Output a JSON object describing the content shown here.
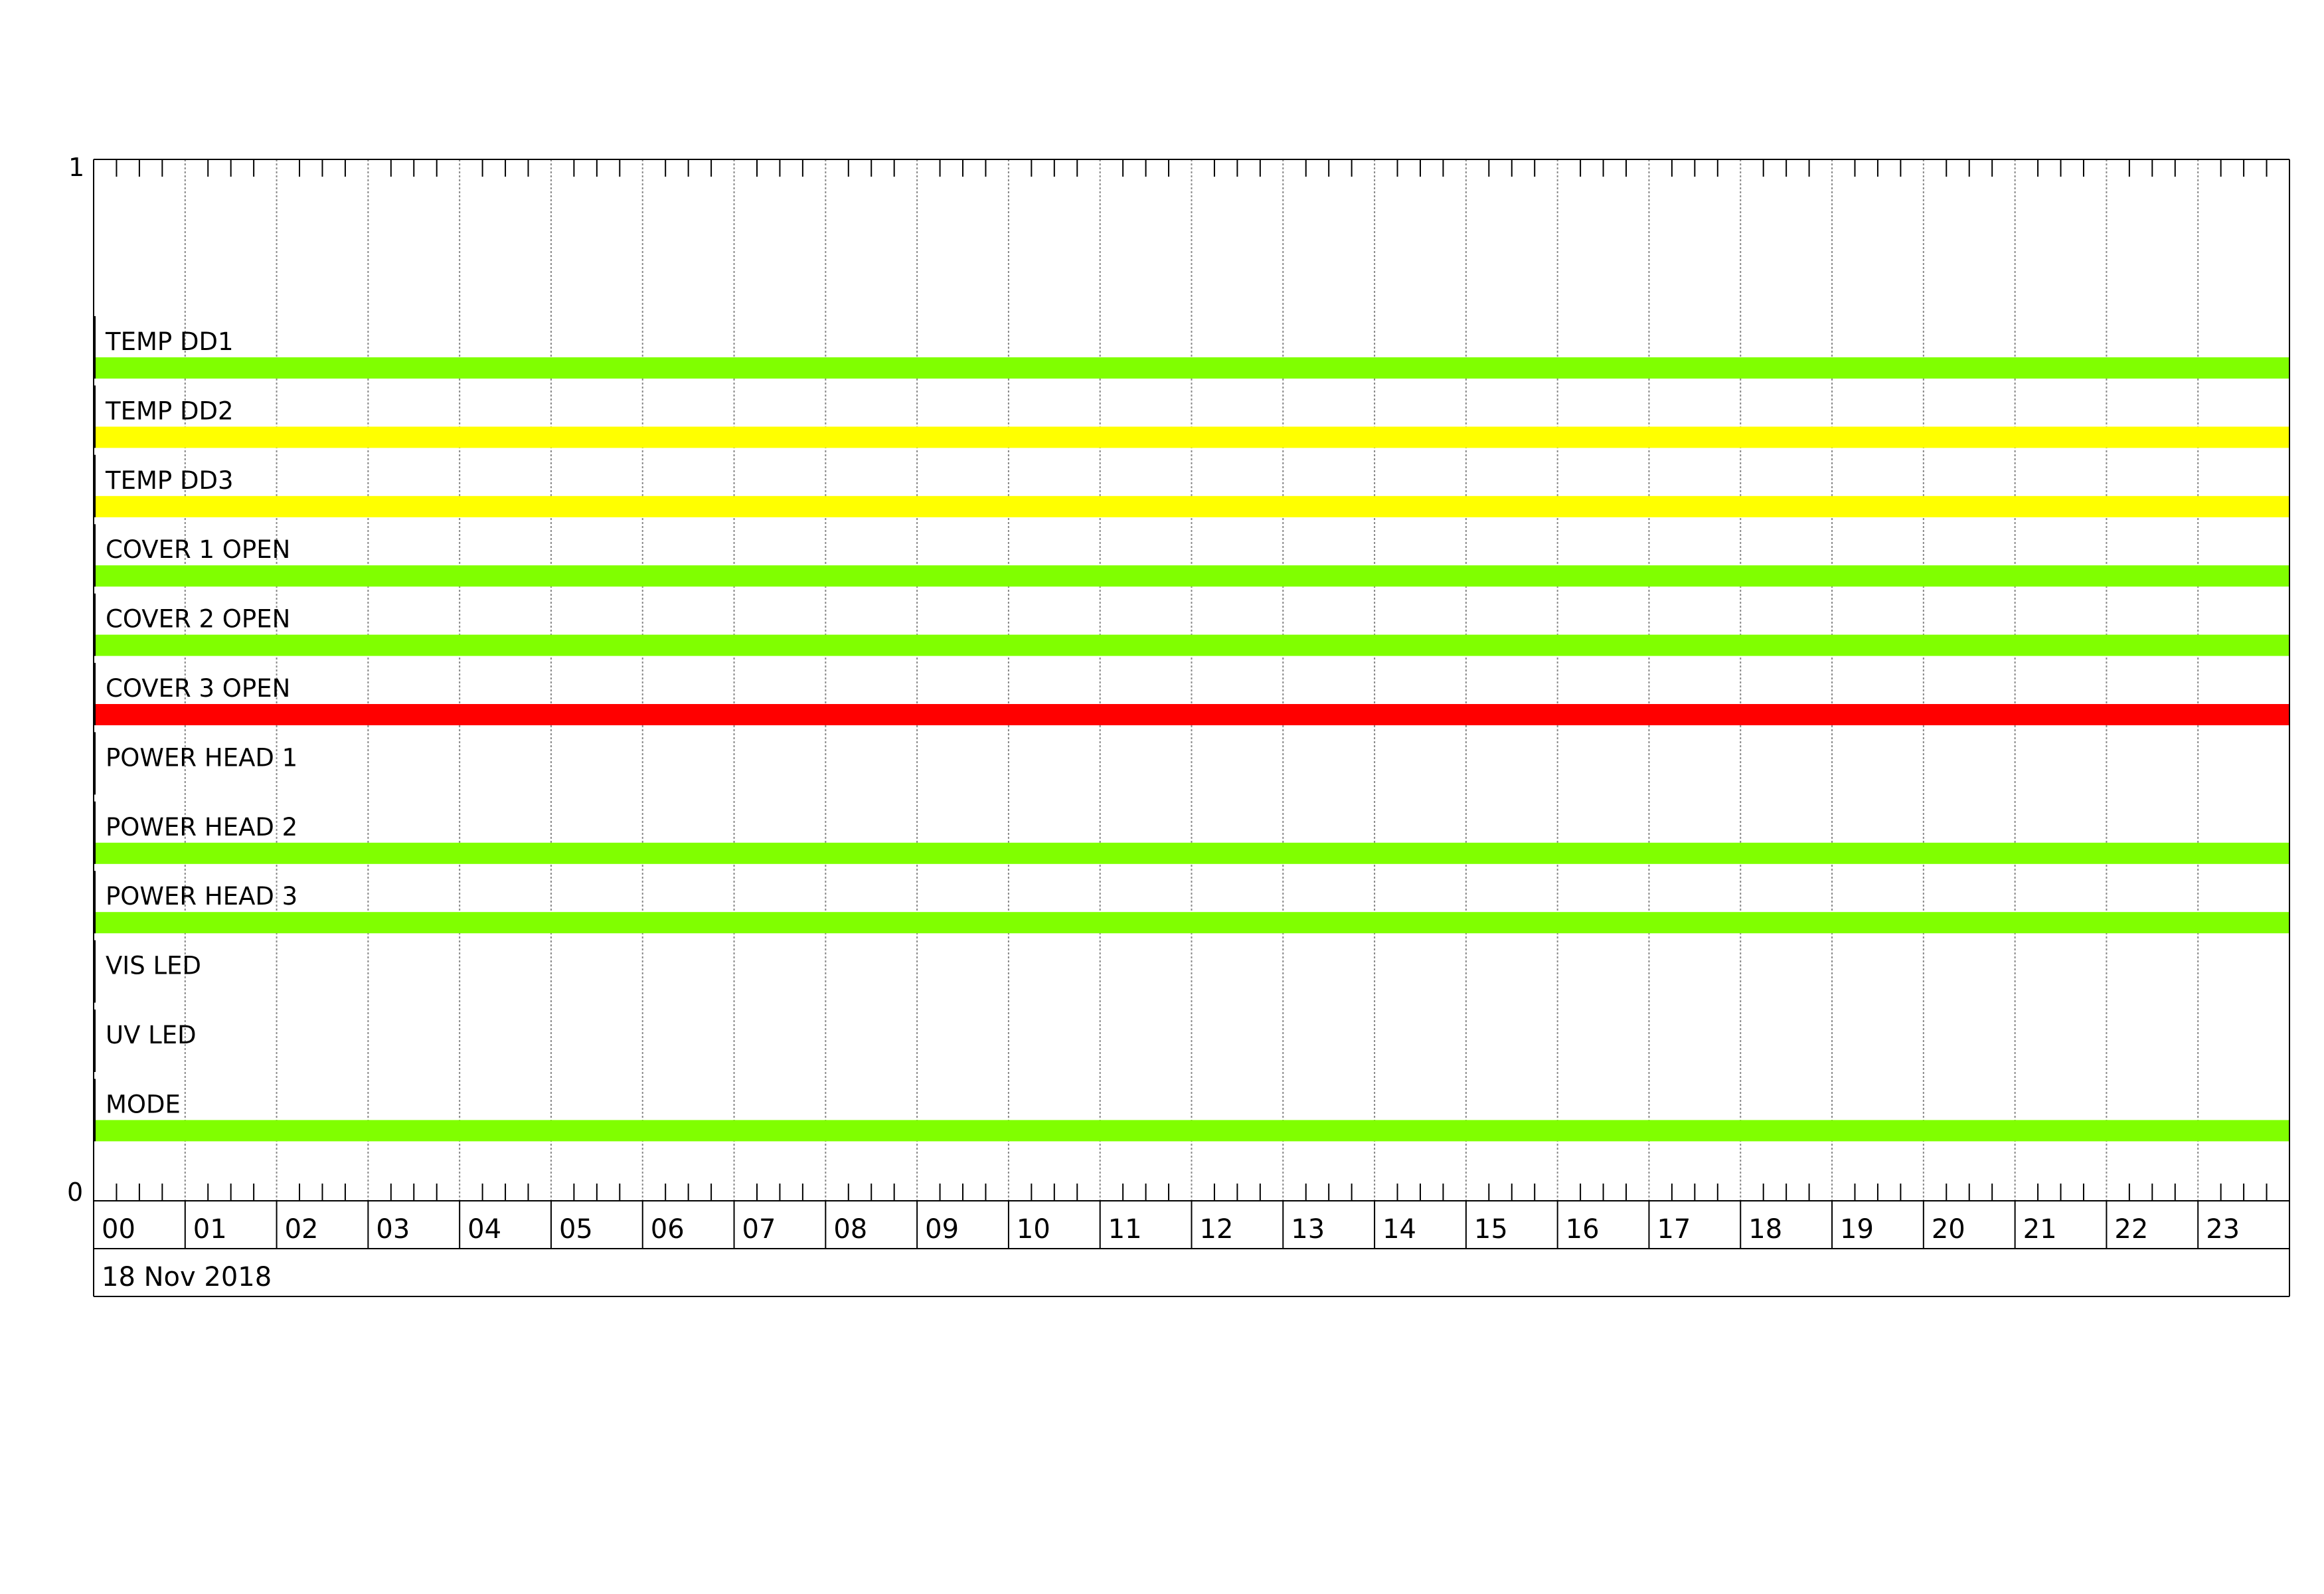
{
  "chart_data": {
    "type": "bar",
    "subtype": "timeline",
    "title": "",
    "xlabel": "",
    "ylabel": "",
    "date_label": "18 Nov 2018",
    "xlim": [
      0,
      24
    ],
    "ylim": [
      0,
      1
    ],
    "y_ticks": [
      "1",
      "0"
    ],
    "x_tick_labels": [
      "00",
      "01",
      "02",
      "03",
      "04",
      "05",
      "06",
      "07",
      "08",
      "09",
      "10",
      "11",
      "12",
      "13",
      "14",
      "15",
      "16",
      "17",
      "18",
      "19",
      "20",
      "21",
      "22",
      "23"
    ],
    "minor_ticks_per_hour": 4,
    "grid": true,
    "colors": {
      "ok": "#80ff00",
      "warning": "#ffff00",
      "alarm": "#ff0000"
    },
    "series": [
      {
        "name": "TEMP DD1",
        "segments": [
          {
            "start": 0,
            "end": 24,
            "state": "ok"
          }
        ]
      },
      {
        "name": "TEMP DD2",
        "segments": [
          {
            "start": 0,
            "end": 24,
            "state": "warning"
          }
        ]
      },
      {
        "name": "TEMP DD3",
        "segments": [
          {
            "start": 0,
            "end": 24,
            "state": "warning"
          }
        ]
      },
      {
        "name": "COVER 1 OPEN",
        "segments": [
          {
            "start": 0,
            "end": 24,
            "state": "ok"
          }
        ]
      },
      {
        "name": "COVER 2 OPEN",
        "segments": [
          {
            "start": 0,
            "end": 24,
            "state": "ok"
          }
        ]
      },
      {
        "name": "COVER 3 OPEN",
        "segments": [
          {
            "start": 0,
            "end": 24,
            "state": "alarm"
          }
        ]
      },
      {
        "name": "POWER HEAD 1",
        "segments": []
      },
      {
        "name": "POWER HEAD 2",
        "segments": [
          {
            "start": 0,
            "end": 24,
            "state": "ok"
          }
        ]
      },
      {
        "name": "POWER HEAD 3",
        "segments": [
          {
            "start": 0,
            "end": 24,
            "state": "ok"
          }
        ]
      },
      {
        "name": "VIS LED",
        "segments": []
      },
      {
        "name": "UV LED",
        "segments": []
      },
      {
        "name": "MODE",
        "segments": [
          {
            "start": 0,
            "end": 24,
            "state": "ok"
          }
        ]
      }
    ]
  }
}
